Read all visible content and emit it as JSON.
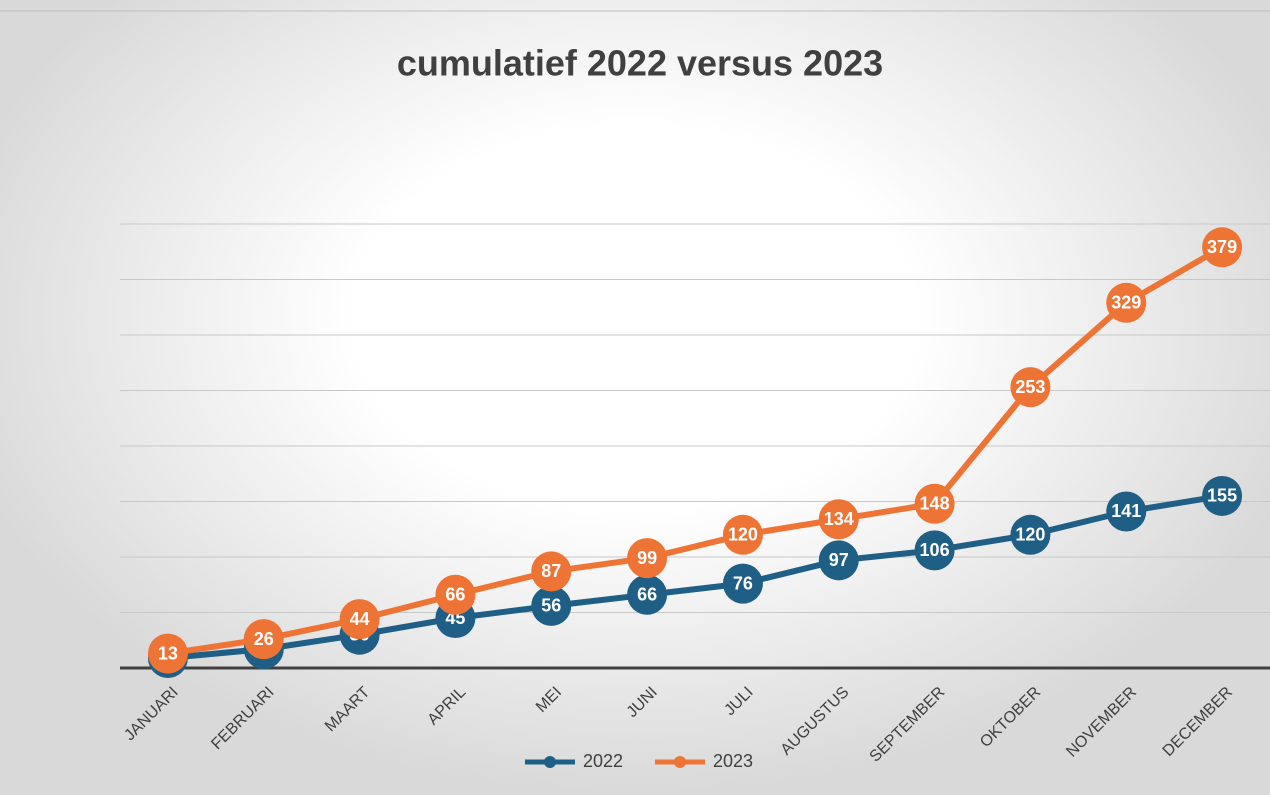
{
  "chart_data": {
    "type": "line",
    "title": "cumulatief 2022 versus 2023",
    "categories": [
      "JANUARI",
      "FEBRUARI",
      "MAART",
      "APRIL",
      "MEI",
      "JUNI",
      "JULI",
      "AUGUSTUS",
      "SEPTEMBER",
      "OKTOBER",
      "NOVEMBER",
      "DECEMBER"
    ],
    "series": [
      {
        "name": "2022",
        "color": "#1f5f86",
        "values": [
          9,
          17,
          30,
          45,
          56,
          66,
          76,
          97,
          106,
          120,
          141,
          155
        ]
      },
      {
        "name": "2023",
        "color": "#ed7434",
        "values": [
          13,
          26,
          44,
          66,
          87,
          99,
          120,
          134,
          148,
          253,
          329,
          379
        ]
      }
    ],
    "ylim": [
      0,
      400
    ],
    "yticks": [
      0,
      50,
      100,
      150,
      200,
      250,
      300,
      350,
      400
    ],
    "grid": true,
    "legend": "bottom"
  }
}
